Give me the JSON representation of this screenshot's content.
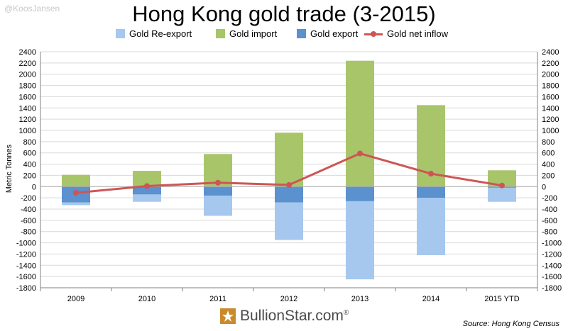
{
  "watermark": "@KoosJansen",
  "source": "Source: Hong Kong Census",
  "logo": {
    "name": "BullionStar",
    "suffix": ".com",
    "reg": "®"
  },
  "chart_data": {
    "type": "bar",
    "title": "Hong Kong gold trade (3-2015)",
    "ylabel": "Metric Tonnes",
    "xlabel": "",
    "ylim": [
      -1800,
      2400
    ],
    "ytick_step": 200,
    "grid": true,
    "categories": [
      "2009",
      "2010",
      "2011",
      "2012",
      "2013",
      "2014",
      "2015 YTD"
    ],
    "series": [
      {
        "name": "Gold Re-export",
        "kind": "bar",
        "color": "#a6c8ee",
        "values": [
          -50,
          -130,
          -360,
          -670,
          -1390,
          -1020,
          -250
        ]
      },
      {
        "name": "Gold import",
        "kind": "bar",
        "color": "#a8c56a",
        "values": [
          210,
          280,
          580,
          960,
          2240,
          1450,
          290
        ]
      },
      {
        "name": "Gold export",
        "kind": "bar",
        "color": "#5b91cf",
        "values": [
          -280,
          -140,
          -160,
          -280,
          -260,
          -200,
          -20
        ]
      },
      {
        "name": "Gold net inflow",
        "kind": "line",
        "color": "#cd5655",
        "values": [
          -110,
          10,
          70,
          30,
          590,
          230,
          20
        ]
      }
    ]
  }
}
